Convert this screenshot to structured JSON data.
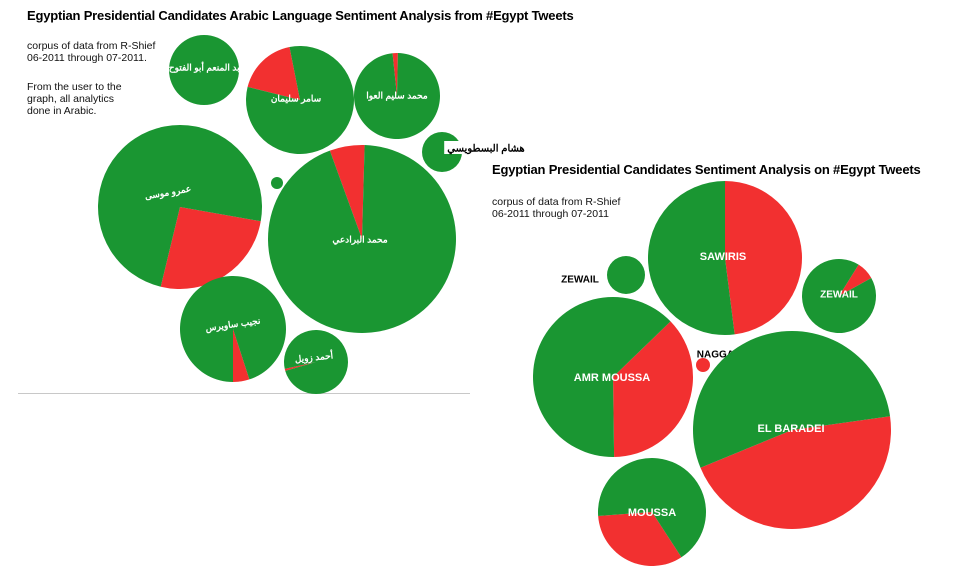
{
  "colors": {
    "positive": "#1a9632",
    "negative": "#f23030",
    "outside_label": "#000000"
  },
  "panel_arabic": {
    "title": "Egyptian Presidential Candidates Arabic Language Sentiment Analysis from #Egypt Tweets",
    "note_1": "corpus of data from R-Shief\n06-2011 through 07-2011.",
    "note_2": "From the user to the\ngraph, all analytics\ndone in Arabic."
  },
  "panel_english": {
    "title": "Egyptian Presidential Candidates Sentiment Analysis on #Egypt Tweets",
    "note": "corpus of data from R-Shief\n06-2011 through 07-2011"
  },
  "chart_data": [
    {
      "type": "pie",
      "title": "Egyptian Presidential Candidates Arabic Language Sentiment Analysis from #Egypt Tweets",
      "series": [
        {
          "name": "عبد المنعم أبو الفتوح",
          "positive": 1.0,
          "negative": 0.0
        },
        {
          "name": "سامر سليمان",
          "positive": 0.82,
          "negative": 0.18
        },
        {
          "name": "محمد سليم العوا",
          "positive": 0.98,
          "negative": 0.02
        },
        {
          "name": "هشام البسطويسي",
          "positive": 1.0,
          "negative": 0.0
        },
        {
          "name": "عمرو موسى",
          "positive": 0.74,
          "negative": 0.26
        },
        {
          "name": "",
          "positive": 1.0,
          "negative": 0.0
        },
        {
          "name": "محمد البرادعي",
          "positive": 0.94,
          "negative": 0.06
        },
        {
          "name": "نجيب ساويرس",
          "positive": 0.95,
          "negative": 0.05
        },
        {
          "name": "أحمد زويل",
          "positive": 0.99,
          "negative": 0.01
        }
      ]
    },
    {
      "type": "pie",
      "title": "Egyptian Presidential Candidates Sentiment Analysis on #Egypt Tweets",
      "series": [
        {
          "name": "ZEWAIL",
          "positive": 1.0,
          "negative": 0.0
        },
        {
          "name": "SAWIRIS",
          "positive": 0.52,
          "negative": 0.48
        },
        {
          "name": "ZEWAIL",
          "positive": 0.92,
          "negative": 0.08
        },
        {
          "name": "NAGGAR",
          "positive": 0.0,
          "negative": 1.0
        },
        {
          "name": "AMR MOUSSA",
          "positive": 0.63,
          "negative": 0.37
        },
        {
          "name": "EL BARADEI",
          "positive": 0.54,
          "negative": 0.46
        },
        {
          "name": "MOUSSA",
          "positive": 0.67,
          "negative": 0.33
        }
      ]
    }
  ]
}
